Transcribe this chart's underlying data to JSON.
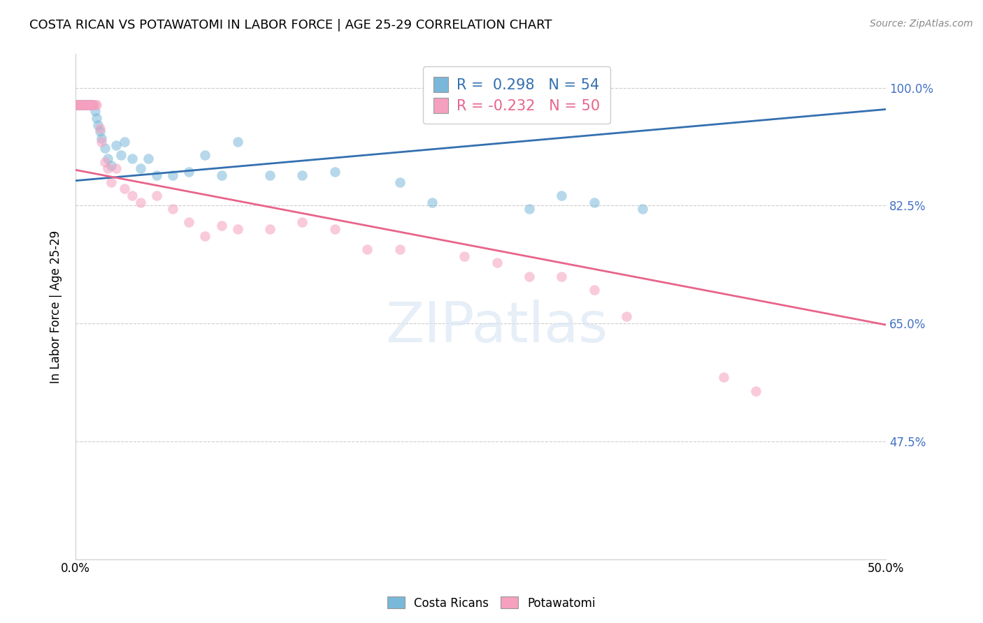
{
  "title": "COSTA RICAN VS POTAWATOMI IN LABOR FORCE | AGE 25-29 CORRELATION CHART",
  "source": "Source: ZipAtlas.com",
  "ylabel": "In Labor Force | Age 25-29",
  "xlim": [
    0.0,
    0.5
  ],
  "ylim": [
    0.3,
    1.05
  ],
  "yticks": [
    0.475,
    0.65,
    0.825,
    1.0
  ],
  "ytick_labels": [
    "47.5%",
    "65.0%",
    "82.5%",
    "100.0%"
  ],
  "xtick_labels": [
    "0.0%",
    "50.0%"
  ],
  "xtick_pos": [
    0.0,
    0.5
  ],
  "legend_r_blue": "R =  0.298",
  "legend_n_blue": "N = 54",
  "legend_r_pink": "R = -0.232",
  "legend_n_pink": "N = 50",
  "blue_color": "#7ab8d9",
  "pink_color": "#f5a0be",
  "blue_line_color": "#3470b0",
  "pink_line_color": "#e8648a",
  "right_label_color": "#4472c4",
  "watermark_text": "ZIPatlas",
  "blue_scatter_x": [
    0.001,
    0.001,
    0.002,
    0.002,
    0.003,
    0.003,
    0.003,
    0.004,
    0.004,
    0.004,
    0.005,
    0.005,
    0.005,
    0.006,
    0.006,
    0.006,
    0.007,
    0.007,
    0.008,
    0.008,
    0.009,
    0.009,
    0.01,
    0.01,
    0.011,
    0.012,
    0.013,
    0.014,
    0.015,
    0.016,
    0.018,
    0.02,
    0.022,
    0.025,
    0.028,
    0.03,
    0.035,
    0.04,
    0.045,
    0.05,
    0.06,
    0.07,
    0.08,
    0.09,
    0.1,
    0.12,
    0.14,
    0.16,
    0.2,
    0.22,
    0.28,
    0.3,
    0.32,
    0.35
  ],
  "blue_scatter_y": [
    0.975,
    0.975,
    0.975,
    0.975,
    0.975,
    0.975,
    0.975,
    0.975,
    0.975,
    0.975,
    0.975,
    0.975,
    0.975,
    0.975,
    0.975,
    0.975,
    0.975,
    0.975,
    0.975,
    0.975,
    0.975,
    0.975,
    0.975,
    0.975,
    0.975,
    0.965,
    0.955,
    0.945,
    0.935,
    0.925,
    0.91,
    0.895,
    0.885,
    0.915,
    0.9,
    0.92,
    0.895,
    0.88,
    0.895,
    0.87,
    0.87,
    0.875,
    0.9,
    0.87,
    0.92,
    0.87,
    0.87,
    0.875,
    0.86,
    0.83,
    0.82,
    0.84,
    0.83,
    0.82
  ],
  "pink_scatter_x": [
    0.001,
    0.001,
    0.002,
    0.002,
    0.003,
    0.003,
    0.004,
    0.004,
    0.005,
    0.005,
    0.006,
    0.006,
    0.007,
    0.007,
    0.008,
    0.008,
    0.009,
    0.01,
    0.01,
    0.011,
    0.012,
    0.013,
    0.015,
    0.016,
    0.018,
    0.02,
    0.022,
    0.025,
    0.03,
    0.035,
    0.04,
    0.05,
    0.06,
    0.07,
    0.08,
    0.09,
    0.1,
    0.12,
    0.14,
    0.16,
    0.18,
    0.2,
    0.24,
    0.26,
    0.28,
    0.3,
    0.32,
    0.34,
    0.4,
    0.42
  ],
  "pink_scatter_y": [
    0.975,
    0.975,
    0.975,
    0.975,
    0.975,
    0.975,
    0.975,
    0.975,
    0.975,
    0.975,
    0.975,
    0.975,
    0.975,
    0.975,
    0.975,
    0.975,
    0.975,
    0.975,
    0.975,
    0.975,
    0.975,
    0.975,
    0.94,
    0.92,
    0.89,
    0.88,
    0.86,
    0.88,
    0.85,
    0.84,
    0.83,
    0.84,
    0.82,
    0.8,
    0.78,
    0.795,
    0.79,
    0.79,
    0.8,
    0.79,
    0.76,
    0.76,
    0.75,
    0.74,
    0.72,
    0.72,
    0.7,
    0.66,
    0.57,
    0.55
  ],
  "blue_trend_x": [
    0.0,
    0.5
  ],
  "blue_trend_y": [
    0.862,
    0.968
  ],
  "pink_trend_x": [
    0.0,
    0.5
  ],
  "pink_trend_y": [
    0.878,
    0.648
  ],
  "figsize": [
    14.06,
    8.92
  ],
  "dpi": 100
}
